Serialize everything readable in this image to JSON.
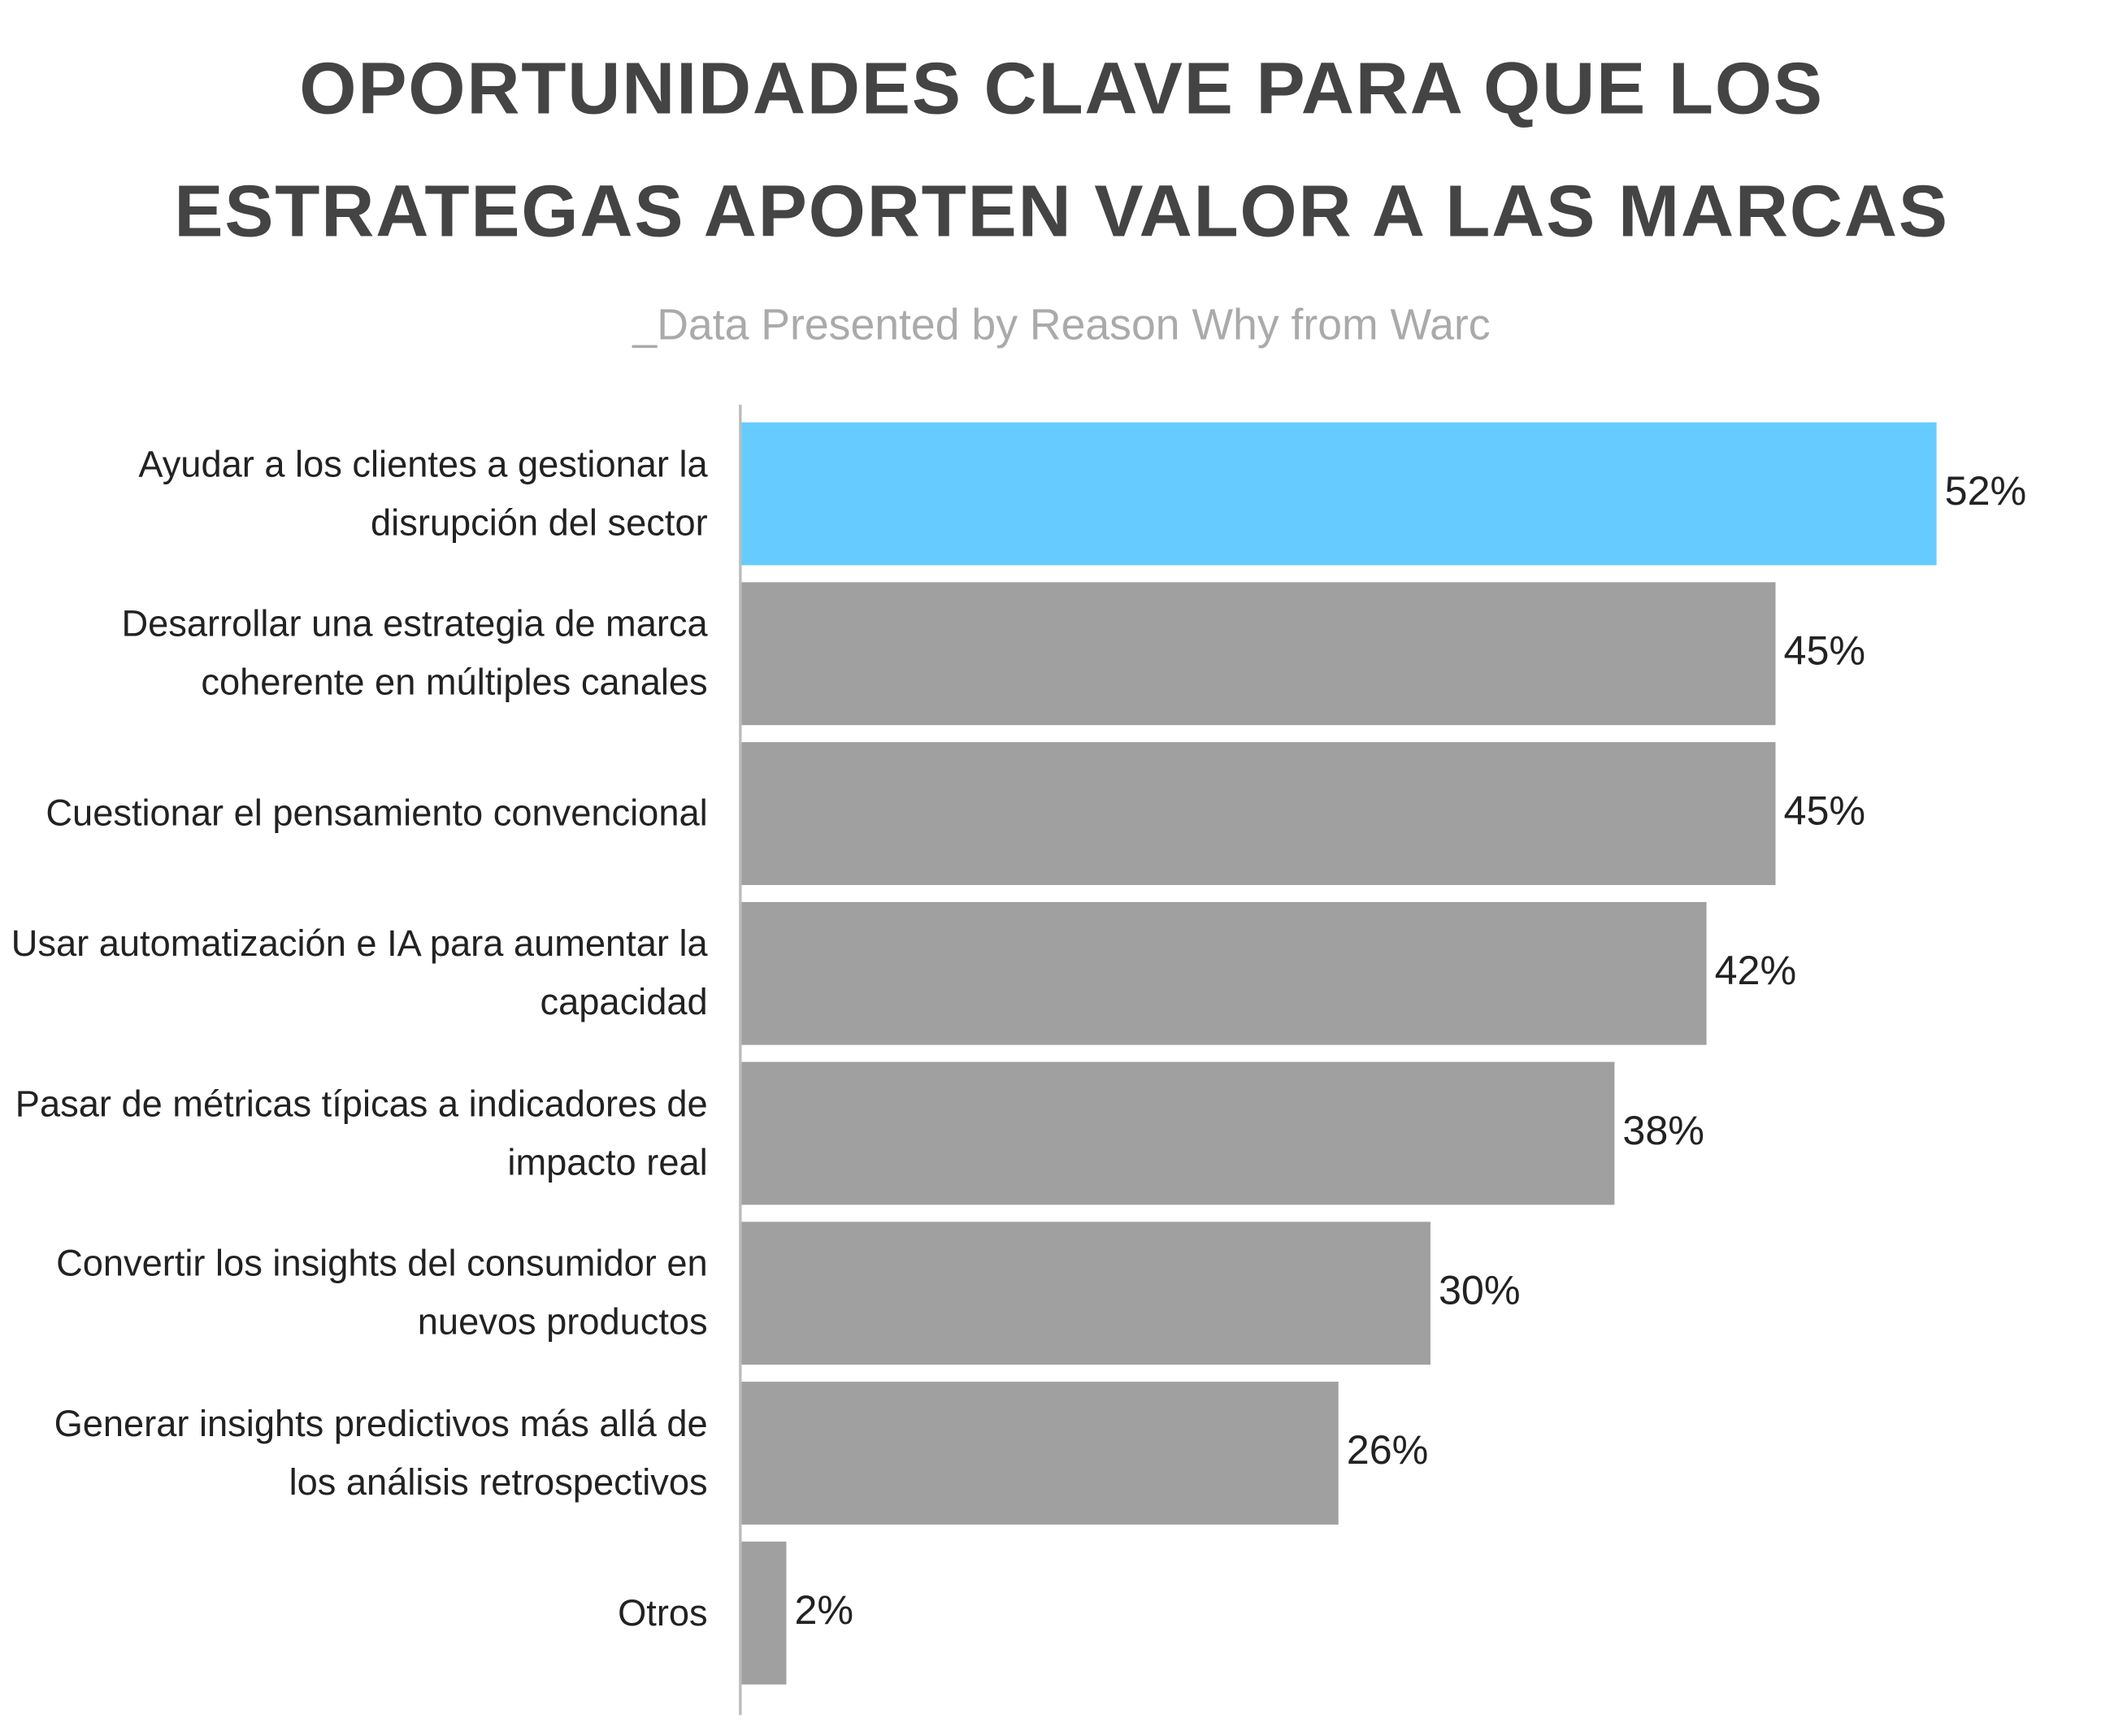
{
  "chart_data": {
    "type": "bar",
    "orientation": "horizontal",
    "title": "OPORTUNIDADES CLAVE PARA QUE LOS ESTRATEGAS APORTEN VALOR A LAS MARCAS",
    "subtitle": "_Data Presented by Reason Why from Warc",
    "categories": [
      "Ayudar a los clientes a gestionar la disrupción del sector",
      "Desarrollar una estrategia de marca coherente en múltiples canales",
      "Cuestionar el pensamiento convencional",
      "Usar automatización e IA para aumentar la capacidad",
      "Pasar de métricas típicas a indicadores de impacto real",
      "Convertir los insights del consumidor en nuevos productos",
      "Generar insights predictivos más allá de los análisis retrospectivos",
      "Otros"
    ],
    "values": [
      52,
      45,
      45,
      42,
      38,
      30,
      26,
      2
    ],
    "value_labels": [
      "52%",
      "45%",
      "45%",
      "42%",
      "38%",
      "30%",
      "26%",
      "2%"
    ],
    "colors": [
      "#66ccff",
      "#a0a0a0",
      "#a0a0a0",
      "#a0a0a0",
      "#a0a0a0",
      "#a0a0a0",
      "#a0a0a0",
      "#a0a0a0"
    ]
  }
}
